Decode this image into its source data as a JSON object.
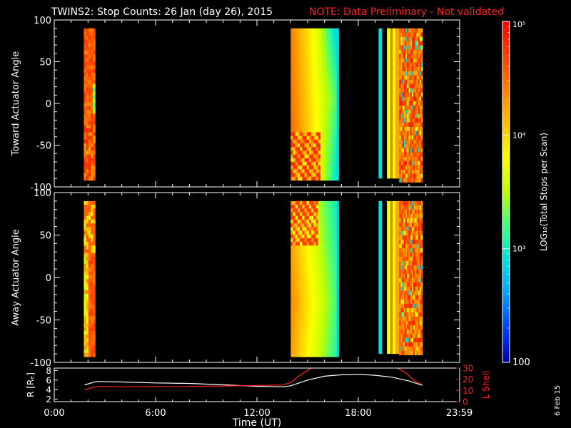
{
  "header": {
    "title": "TWINS2: Stop Counts: 26 Jan (day  26), 2015",
    "note": "NOTE: Data Preliminary - Not validated",
    "note_color": "#ff2020"
  },
  "side_stamp": "6 Feb 15",
  "chart_data": [
    {
      "type": "heatmap",
      "name": "toward",
      "ylabel": "Toward Actuator Angle",
      "ylim": [
        -100,
        100
      ],
      "yticks": [
        {
          "v": 100,
          "label": "100"
        },
        {
          "v": 50,
          "label": "50"
        },
        {
          "v": 0,
          "label": "0"
        },
        {
          "v": -50,
          "label": "-50"
        },
        {
          "v": -100,
          "label": "-100"
        }
      ],
      "xlim": [
        0,
        24
      ],
      "angle_range": [
        -90,
        90
      ],
      "data_blocks": [
        {
          "start": 1.75,
          "end": 2.4,
          "pattern": "early_toward"
        },
        {
          "start": 14.0,
          "end": 16.9,
          "pattern": "mid_toward"
        },
        {
          "start": 19.2,
          "end": 21.8,
          "pattern": "late_stripes"
        }
      ]
    },
    {
      "type": "heatmap",
      "name": "away",
      "ylabel": "Away Actuator Angle",
      "ylim": [
        -100,
        100
      ],
      "yticks": [
        {
          "v": 100,
          "label": "100"
        },
        {
          "v": 50,
          "label": "50"
        },
        {
          "v": 0,
          "label": "0"
        },
        {
          "v": -50,
          "label": "-50"
        },
        {
          "v": -100,
          "label": "-100"
        }
      ],
      "xlim": [
        0,
        24
      ],
      "angle_range": [
        -90,
        90
      ],
      "data_blocks": [
        {
          "start": 1.75,
          "end": 2.4,
          "pattern": "early_away"
        },
        {
          "start": 14.0,
          "end": 16.9,
          "pattern": "mid_away"
        },
        {
          "start": 19.2,
          "end": 21.8,
          "pattern": "late_stripes"
        }
      ]
    },
    {
      "type": "line",
      "name": "orbit",
      "xlim": [
        0,
        24
      ],
      "left_axis": {
        "label": "R [Rₑ]",
        "ylim": [
          1.5,
          8.5
        ],
        "ticks": [
          "2",
          "4",
          "6",
          "8"
        ],
        "tick_values": [
          2,
          4,
          6,
          8
        ],
        "color": "#ffffff"
      },
      "right_axis": {
        "label": "L Shell",
        "ylim": [
          0,
          30
        ],
        "ticks": [
          "0",
          "10",
          "20",
          "30"
        ],
        "tick_values": [
          0,
          10,
          20,
          30
        ],
        "color": "#ff2020"
      },
      "series": [
        {
          "axis": "left",
          "color": "#ffffff",
          "x": [
            1.8,
            2.5,
            4,
            6,
            8,
            10,
            12,
            13.5,
            14,
            15,
            16,
            17,
            18,
            19,
            20,
            21,
            21.8
          ],
          "y": [
            5.0,
            5.7,
            5.6,
            5.4,
            5.3,
            5.0,
            4.7,
            4.6,
            4.8,
            6.0,
            6.8,
            7.1,
            7.2,
            7.0,
            6.6,
            5.8,
            4.9
          ]
        },
        {
          "axis": "right",
          "color": "#ff2020",
          "x": [
            1.8,
            2.5,
            4,
            6,
            8,
            10,
            12,
            13.5,
            14.0,
            14.6,
            15.2,
            15.4
          ],
          "y": [
            10.5,
            13.5,
            13.3,
            13.4,
            13.5,
            14.0,
            14.5,
            14.8,
            17,
            24,
            30,
            31
          ]
        },
        {
          "axis": "right",
          "color": "#ff2020",
          "x": [
            20.2,
            20.8,
            21.3,
            21.8
          ],
          "y": [
            31,
            26,
            19,
            15
          ]
        }
      ]
    }
  ],
  "time_axis": {
    "label": "Time (UT)",
    "ticks": [
      {
        "v": 0,
        "label": "0:00"
      },
      {
        "v": 6,
        "label": "6:00"
      },
      {
        "v": 12,
        "label": "12:00"
      },
      {
        "v": 18,
        "label": "18:00"
      },
      {
        "v": 23.983,
        "label": "23:59"
      }
    ]
  },
  "colorbar": {
    "title": "LOG₁₀(Total Stops per Scan)",
    "scale": "log",
    "range": [
      100,
      100000
    ],
    "ticks": [
      {
        "v": 100000,
        "label": "10⁵"
      },
      {
        "v": 10000,
        "label": "10⁴"
      },
      {
        "v": 1000,
        "label": "10³"
      },
      {
        "v": 100,
        "label": "100"
      }
    ],
    "colors": [
      "#0000a0",
      "#0040ff",
      "#00a0ff",
      "#00e0e0",
      "#40ff80",
      "#c0ff00",
      "#ffff00",
      "#ffc000",
      "#ff8000",
      "#ff4000",
      "#ff0000"
    ]
  }
}
